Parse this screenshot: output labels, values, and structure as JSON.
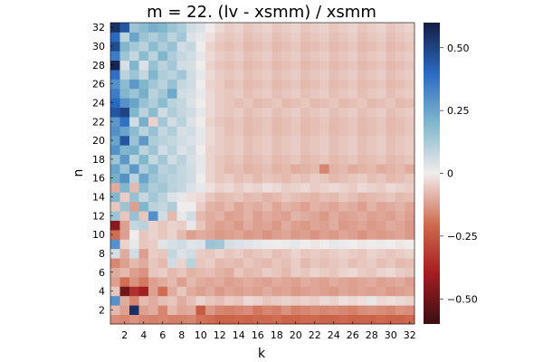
{
  "chart_data": {
    "type": "heatmap",
    "title": "m = 22. (lv - xsmm) / xsmm",
    "xlabel": "k",
    "ylabel": "n",
    "x_range": [
      1,
      32
    ],
    "y_range": [
      1,
      32
    ],
    "x_ticks": [
      "2",
      "4",
      "6",
      "8",
      "10",
      "12",
      "14",
      "16",
      "18",
      "20",
      "22",
      "24",
      "26",
      "28",
      "30",
      "32"
    ],
    "y_ticks": [
      "2",
      "4",
      "6",
      "8",
      "10",
      "12",
      "14",
      "16",
      "18",
      "20",
      "22",
      "24",
      "26",
      "28",
      "30",
      "32"
    ],
    "colorbar": {
      "range": [
        -0.6,
        0.6
      ],
      "ticks": [
        {
          "value": 0.5,
          "label": "0.50"
        },
        {
          "value": 0.25,
          "label": "0.25"
        },
        {
          "value": 0,
          "label": "0"
        },
        {
          "value": -0.25,
          "label": "−0.25"
        },
        {
          "value": -0.5,
          "label": "−0.50"
        }
      ],
      "colormap": "balance (dark red → white → dark blue)"
    },
    "values_rows_n1_to_n32": [
      [
        -0.15,
        -0.16,
        -0.14,
        -0.16,
        -0.17,
        -0.16,
        -0.17,
        -0.17,
        -0.16,
        -0.19,
        -0.2,
        -0.22,
        -0.22,
        -0.21,
        -0.22,
        -0.21,
        -0.21,
        -0.2,
        -0.22,
        -0.22,
        -0.21,
        -0.21,
        -0.22,
        -0.22,
        -0.21,
        -0.22,
        -0.22,
        -0.22,
        -0.21,
        -0.22,
        -0.22,
        -0.21
      ],
      [
        -0.08,
        -0.12,
        0.55,
        -0.12,
        -0.1,
        -0.16,
        -0.08,
        -0.11,
        -0.1,
        -0.24,
        -0.13,
        -0.16,
        -0.17,
        -0.16,
        -0.15,
        -0.18,
        -0.16,
        -0.17,
        -0.14,
        -0.17,
        -0.16,
        -0.15,
        -0.16,
        -0.15,
        -0.16,
        -0.17,
        -0.15,
        -0.14,
        -0.15,
        -0.16,
        -0.14,
        -0.15
      ],
      [
        0.3,
        -0.1,
        -0.16,
        -0.08,
        -0.1,
        -0.07,
        -0.06,
        -0.1,
        -0.07,
        -0.04,
        -0.06,
        -0.07,
        -0.05,
        -0.06,
        -0.03,
        -0.04,
        -0.06,
        -0.05,
        -0.04,
        -0.05,
        -0.04,
        -0.05,
        -0.03,
        -0.04,
        -0.02,
        -0.03,
        -0.02,
        0.02,
        -0.03,
        -0.02,
        -0.03,
        -0.04
      ],
      [
        -0.06,
        -0.5,
        -0.35,
        -0.4,
        -0.12,
        -0.2,
        -0.1,
        -0.06,
        -0.1,
        -0.12,
        -0.1,
        -0.13,
        -0.11,
        -0.12,
        -0.11,
        -0.12,
        -0.1,
        -0.12,
        -0.11,
        -0.13,
        -0.12,
        -0.11,
        -0.12,
        -0.13,
        -0.11,
        -0.12,
        -0.11,
        -0.12,
        -0.11,
        -0.13,
        -0.12,
        -0.11
      ],
      [
        -0.12,
        -0.2,
        -0.14,
        -0.18,
        -0.12,
        -0.1,
        -0.08,
        -0.12,
        -0.08,
        -0.1,
        -0.11,
        -0.1,
        -0.12,
        -0.11,
        -0.1,
        -0.11,
        -0.12,
        -0.1,
        -0.11,
        -0.12,
        -0.1,
        -0.11,
        -0.12,
        -0.1,
        -0.11,
        -0.12,
        -0.11,
        -0.1,
        -0.12,
        -0.11,
        -0.1,
        -0.12
      ],
      [
        -0.1,
        -0.08,
        -0.12,
        -0.14,
        -0.06,
        -0.05,
        -0.08,
        -0.06,
        -0.09,
        -0.08,
        -0.07,
        -0.09,
        -0.1,
        -0.06,
        -0.08,
        -0.07,
        -0.05,
        -0.06,
        -0.08,
        -0.05,
        -0.06,
        -0.04,
        -0.05,
        -0.06,
        -0.04,
        -0.03,
        -0.05,
        -0.06,
        -0.04,
        -0.03,
        -0.05,
        -0.06
      ],
      [
        -0.16,
        -0.12,
        -0.08,
        -0.1,
        -0.06,
        -0.08,
        0.06,
        -0.04,
        0.1,
        -0.06,
        -0.05,
        -0.08,
        -0.07,
        -0.08,
        -0.06,
        -0.07,
        -0.08,
        -0.06,
        -0.07,
        -0.05,
        -0.08,
        -0.06,
        -0.07,
        -0.06,
        -0.05,
        -0.07,
        -0.06,
        -0.05,
        -0.07,
        -0.06,
        -0.08,
        -0.07
      ],
      [
        0.05,
        -0.1,
        0.06,
        -0.12,
        -0.05,
        -0.06,
        0.08,
        0.04,
        0.06,
        -0.05,
        -0.06,
        -0.04,
        -0.06,
        -0.05,
        -0.07,
        -0.06,
        -0.05,
        -0.07,
        -0.06,
        -0.04,
        -0.06,
        -0.05,
        -0.06,
        -0.05,
        -0.04,
        -0.05,
        -0.06,
        -0.04,
        -0.05,
        -0.06,
        -0.05,
        -0.04
      ],
      [
        0.3,
        -0.04,
        0.02,
        -0.06,
        -0.05,
        0.03,
        0.05,
        0.06,
        0.03,
        0.04,
        0.15,
        0.14,
        0.05,
        0.04,
        0.03,
        0.02,
        0.01,
        0.0,
        0.01,
        0.02,
        0.0,
        -0.01,
        0.0,
        0.02,
        0.01,
        0.0,
        -0.01,
        0.0,
        0.01,
        0.0,
        -0.01,
        0.0
      ],
      [
        -0.2,
        -0.12,
        0.0,
        -0.06,
        -0.04,
        -0.06,
        -0.04,
        -0.08,
        -0.12,
        -0.1,
        -0.11,
        -0.13,
        -0.12,
        -0.11,
        -0.13,
        -0.12,
        -0.14,
        -0.12,
        -0.11,
        -0.13,
        -0.12,
        -0.14,
        -0.12,
        -0.13,
        -0.11,
        -0.12,
        -0.14,
        -0.12,
        -0.13,
        -0.12,
        -0.11,
        -0.13
      ],
      [
        -0.45,
        -0.12,
        0.08,
        0.1,
        -0.04,
        -0.06,
        -0.04,
        -0.05,
        0.02,
        -0.06,
        -0.1,
        -0.12,
        -0.11,
        -0.13,
        -0.1,
        -0.12,
        -0.11,
        -0.13,
        -0.1,
        -0.12,
        -0.13,
        -0.11,
        -0.12,
        -0.1,
        -0.13,
        -0.12,
        -0.11,
        -0.13,
        -0.12,
        -0.1,
        -0.11,
        -0.13
      ],
      [
        0.15,
        -0.06,
        0.16,
        -0.06,
        0.3,
        0.06,
        -0.08,
        0.02,
        0.06,
        -0.08,
        -0.1,
        -0.09,
        -0.12,
        -0.11,
        -0.09,
        -0.12,
        -0.1,
        -0.11,
        -0.12,
        -0.09,
        -0.1,
        -0.11,
        -0.13,
        -0.1,
        -0.12,
        -0.11,
        -0.1,
        -0.12,
        -0.11,
        -0.12,
        -0.1,
        -0.12
      ],
      [
        -0.06,
        0.15,
        -0.12,
        0.2,
        0.1,
        0.08,
        0.12,
        0.0,
        0.0,
        -0.05,
        -0.09,
        -0.1,
        -0.08,
        -0.11,
        -0.09,
        -0.1,
        -0.08,
        -0.11,
        -0.09,
        -0.1,
        -0.12,
        -0.09,
        -0.1,
        -0.11,
        -0.09,
        -0.1,
        -0.12,
        -0.09,
        -0.11,
        -0.1,
        -0.09,
        -0.11
      ],
      [
        0.2,
        -0.05,
        0.16,
        0.08,
        0.14,
        0.1,
        0.04,
        0.02,
        -0.02,
        -0.03,
        -0.06,
        -0.08,
        -0.07,
        -0.06,
        -0.08,
        -0.07,
        -0.09,
        -0.08,
        -0.06,
        -0.07,
        -0.08,
        -0.09,
        -0.07,
        -0.08,
        -0.06,
        -0.07,
        -0.09,
        -0.08,
        -0.07,
        -0.06,
        -0.08,
        -0.07
      ],
      [
        -0.1,
        0.2,
        -0.08,
        0.18,
        0.12,
        0.14,
        0.1,
        0.08,
        0.04,
        0.02,
        -0.02,
        -0.04,
        -0.03,
        -0.05,
        -0.03,
        -0.04,
        -0.02,
        -0.03,
        -0.05,
        -0.04,
        -0.03,
        -0.05,
        -0.04,
        -0.03,
        -0.04,
        -0.05,
        -0.03,
        -0.04,
        -0.05,
        -0.03,
        -0.04,
        -0.05
      ],
      [
        0.22,
        0.3,
        0.1,
        0.25,
        0.15,
        0.12,
        0.1,
        0.08,
        0.06,
        0.0,
        -0.04,
        -0.06,
        -0.05,
        -0.07,
        -0.06,
        -0.08,
        -0.06,
        -0.07,
        -0.08,
        -0.06,
        -0.07,
        -0.05,
        -0.06,
        -0.08,
        -0.07,
        -0.06,
        -0.05,
        -0.07,
        -0.06,
        -0.08,
        -0.07,
        -0.06
      ],
      [
        0.25,
        0.15,
        0.28,
        0.12,
        0.18,
        0.1,
        0.12,
        0.08,
        0.06,
        0.02,
        -0.04,
        -0.06,
        -0.08,
        -0.07,
        -0.09,
        -0.08,
        -0.07,
        -0.09,
        -0.08,
        -0.1,
        -0.09,
        -0.08,
        -0.16,
        -0.09,
        -0.08,
        -0.1,
        -0.09,
        -0.08,
        -0.1,
        -0.09,
        -0.08,
        -0.1
      ],
      [
        0.15,
        0.28,
        0.1,
        0.2,
        0.08,
        0.14,
        0.06,
        0.1,
        0.05,
        0.02,
        -0.04,
        -0.06,
        -0.07,
        -0.06,
        -0.08,
        -0.07,
        -0.06,
        -0.08,
        -0.07,
        -0.06,
        -0.08,
        -0.07,
        -0.06,
        -0.08,
        -0.07,
        -0.06,
        -0.08,
        -0.07,
        -0.06,
        -0.08,
        -0.07,
        -0.06
      ],
      [
        0.3,
        0.2,
        0.22,
        0.1,
        0.15,
        0.06,
        0.1,
        0.04,
        0.06,
        0.0,
        -0.04,
        -0.05,
        -0.06,
        -0.05,
        -0.07,
        -0.06,
        -0.05,
        -0.07,
        -0.06,
        -0.05,
        -0.07,
        -0.06,
        -0.05,
        -0.07,
        -0.06,
        -0.05,
        -0.07,
        -0.06,
        -0.05,
        -0.07,
        -0.06,
        -0.05
      ],
      [
        0.25,
        0.45,
        0.15,
        0.28,
        0.12,
        0.1,
        0.08,
        0.06,
        0.04,
        0.02,
        -0.03,
        -0.05,
        -0.06,
        -0.05,
        -0.07,
        -0.06,
        -0.05,
        -0.07,
        -0.06,
        -0.05,
        -0.07,
        -0.06,
        -0.05,
        -0.07,
        -0.06,
        -0.05,
        -0.07,
        -0.06,
        -0.05,
        -0.07,
        -0.06,
        -0.05
      ],
      [
        0.3,
        0.25,
        0.18,
        0.1,
        0.16,
        0.08,
        0.12,
        0.05,
        0.06,
        0.02,
        -0.03,
        -0.05,
        -0.07,
        -0.06,
        -0.08,
        -0.07,
        -0.06,
        -0.08,
        -0.07,
        -0.06,
        -0.08,
        -0.07,
        -0.06,
        -0.08,
        -0.07,
        -0.06,
        -0.08,
        -0.07,
        -0.06,
        -0.08,
        -0.07,
        -0.06
      ],
      [
        0.28,
        0.38,
        0.06,
        0.22,
        -0.04,
        0.14,
        0.06,
        0.1,
        0.04,
        0.0,
        -0.04,
        -0.06,
        -0.07,
        -0.06,
        -0.08,
        -0.07,
        -0.06,
        -0.08,
        -0.07,
        -0.06,
        -0.08,
        -0.07,
        -0.06,
        -0.08,
        -0.07,
        -0.06,
        -0.08,
        -0.07,
        -0.06,
        -0.08,
        -0.07,
        -0.06
      ],
      [
        0.45,
        0.5,
        0.2,
        0.1,
        0.18,
        0.06,
        0.12,
        0.08,
        0.06,
        0.02,
        -0.03,
        -0.05,
        -0.06,
        -0.05,
        -0.07,
        -0.06,
        -0.05,
        -0.07,
        -0.06,
        -0.05,
        -0.07,
        -0.06,
        -0.05,
        -0.07,
        -0.06,
        -0.05,
        -0.07,
        -0.06,
        -0.05,
        -0.07,
        -0.06,
        -0.05
      ],
      [
        0.4,
        0.3,
        0.25,
        0.16,
        0.12,
        0.18,
        0.1,
        0.08,
        0.04,
        0.0,
        -0.03,
        -0.05,
        -0.06,
        -0.07,
        -0.06,
        -0.08,
        -0.07,
        -0.06,
        -0.08,
        -0.07,
        -0.06,
        -0.08,
        -0.07,
        -0.06,
        -0.08,
        -0.07,
        -0.06,
        -0.08,
        -0.07,
        -0.06,
        -0.08,
        -0.07
      ],
      [
        0.35,
        0.2,
        0.15,
        0.22,
        0.1,
        0.14,
        0.24,
        0.06,
        0.05,
        0.02,
        -0.03,
        -0.05,
        -0.06,
        -0.05,
        -0.07,
        -0.06,
        -0.05,
        -0.07,
        -0.06,
        -0.05,
        -0.07,
        -0.06,
        -0.05,
        -0.07,
        -0.06,
        -0.05,
        -0.07,
        -0.06,
        -0.05,
        -0.07,
        -0.06,
        -0.05
      ],
      [
        0.3,
        0.18,
        0.28,
        0.2,
        0.14,
        0.1,
        0.16,
        0.08,
        0.06,
        0.0,
        -0.04,
        -0.05,
        -0.07,
        -0.06,
        -0.08,
        -0.07,
        -0.06,
        -0.08,
        -0.07,
        -0.06,
        -0.08,
        -0.07,
        -0.06,
        -0.08,
        -0.07,
        -0.06,
        -0.08,
        -0.07,
        -0.06,
        -0.08,
        -0.07,
        -0.06
      ],
      [
        0.38,
        0.1,
        0.15,
        0.08,
        0.2,
        0.12,
        0.1,
        0.14,
        0.06,
        0.02,
        -0.03,
        -0.05,
        -0.06,
        -0.05,
        -0.07,
        -0.06,
        -0.05,
        -0.07,
        -0.06,
        -0.05,
        -0.07,
        -0.06,
        -0.05,
        -0.07,
        -0.06,
        -0.05,
        -0.07,
        -0.06,
        -0.05,
        -0.07,
        -0.06,
        -0.05
      ],
      [
        0.58,
        0.05,
        0.2,
        0.04,
        0.16,
        0.1,
        0.14,
        0.06,
        0.05,
        0.0,
        -0.04,
        -0.06,
        -0.07,
        -0.06,
        -0.08,
        -0.07,
        -0.06,
        -0.08,
        -0.07,
        -0.06,
        -0.08,
        -0.07,
        -0.06,
        -0.08,
        -0.07,
        -0.06,
        -0.08,
        -0.07,
        -0.06,
        -0.08,
        -0.07,
        -0.06
      ],
      [
        0.35,
        0.15,
        0.08,
        0.18,
        0.1,
        0.2,
        0.12,
        0.08,
        0.06,
        0.02,
        -0.03,
        -0.05,
        -0.06,
        -0.05,
        -0.07,
        -0.06,
        -0.05,
        -0.07,
        -0.06,
        -0.05,
        -0.07,
        -0.06,
        -0.05,
        -0.07,
        -0.06,
        -0.05,
        -0.07,
        -0.06,
        -0.05,
        -0.07,
        -0.06,
        -0.05
      ],
      [
        0.48,
        0.2,
        0.14,
        0.1,
        0.18,
        0.12,
        0.16,
        0.06,
        0.08,
        0.0,
        -0.04,
        -0.06,
        -0.07,
        -0.06,
        -0.08,
        -0.07,
        -0.06,
        -0.08,
        -0.07,
        -0.06,
        -0.08,
        -0.07,
        -0.06,
        -0.08,
        -0.07,
        -0.06,
        -0.08,
        -0.07,
        -0.06,
        -0.08,
        -0.07,
        -0.06
      ],
      [
        0.4,
        0.1,
        0.25,
        0.15,
        0.12,
        0.16,
        0.1,
        0.14,
        0.04,
        0.02,
        -0.02,
        -0.05,
        -0.06,
        -0.05,
        -0.07,
        -0.06,
        -0.05,
        -0.07,
        -0.06,
        -0.05,
        -0.07,
        -0.06,
        -0.05,
        -0.07,
        -0.06,
        -0.05,
        -0.07,
        -0.06,
        -0.05,
        -0.07,
        -0.06,
        -0.05
      ],
      [
        0.55,
        0.45,
        0.15,
        0.18,
        0.22,
        0.2,
        0.15,
        0.12,
        0.06,
        0.04,
        0.0,
        -0.03,
        -0.05,
        -0.04,
        -0.06,
        -0.05,
        -0.04,
        -0.06,
        -0.05,
        -0.04,
        -0.06,
        -0.05,
        -0.04,
        -0.06,
        -0.05,
        -0.04,
        -0.06,
        -0.05,
        -0.04,
        -0.06,
        -0.05,
        -0.04
      ]
    ]
  }
}
